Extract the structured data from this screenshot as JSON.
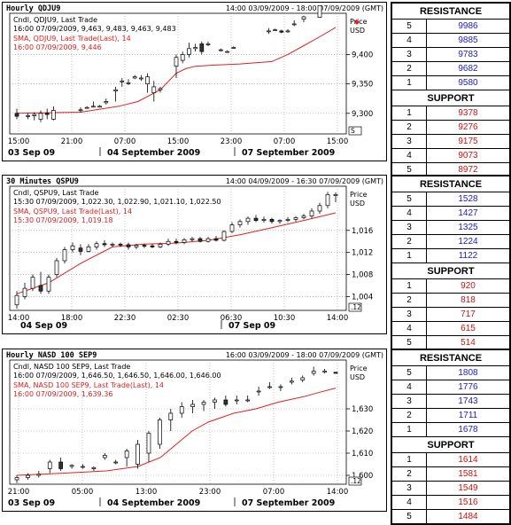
{
  "colors": {
    "support": "#d01010",
    "resistance": "#1a1ad0",
    "sma": "#e02020",
    "candle_up": "#ffffff",
    "candle_down": "#333333"
  },
  "chart_data": [
    {
      "type": "candlestick",
      "title": "Hourly QDJU9",
      "time_range": "14:00 03/09/2009 - 18:00 07/09/2009 (GMT)",
      "legend": [
        "Cndl, QDJU9, Last Trade",
        "16:00 07/09/2009, 9,463, 9,483, 9,463, 9,483",
        "SMA, QDJU9, Last Trade(Last), 14",
        "16:00 07/09/2009, 9,446"
      ],
      "price_label": [
        "Price",
        "USD"
      ],
      "ylim": [
        9265,
        9470
      ],
      "yticks": [
        "9,400",
        "9,350",
        "9,300"
      ],
      "ytick_values": [
        9400,
        9350,
        9300
      ],
      "xtick_labels": [
        "15:00",
        "21:00",
        "07:00",
        "15:00",
        "23:00",
        "07:00",
        "15:00"
      ],
      "date_labels": [
        "03 Sep 09",
        "04 September 2009",
        "07 September 2009"
      ],
      "scale_box": "S",
      "candles": [
        {
          "o": 9300,
          "h": 9308,
          "l": 9290,
          "c": 9295
        },
        {
          "o": 9295,
          "h": 9300,
          "l": 9290,
          "c": 9296
        },
        {
          "o": 9296,
          "h": 9302,
          "l": 9288,
          "c": 9298
        },
        {
          "o": 9290,
          "h": 9305,
          "l": 9285,
          "c": 9300
        },
        {
          "o": 9300,
          "h": 9308,
          "l": 9290,
          "c": 9298
        },
        {
          "o": 9290,
          "h": 9312,
          "l": 9288,
          "c": 9305
        },
        {
          "o": 9306,
          "h": 9310,
          "l": 9302,
          "c": 9306
        },
        {
          "o": 9310,
          "h": 9312,
          "l": 9308,
          "c": 9310
        },
        {
          "o": 9312,
          "h": 9320,
          "l": 9310,
          "c": 9312
        },
        {
          "o": 9312,
          "h": 9314,
          "l": 9310,
          "c": 9312
        },
        {
          "o": 9318,
          "h": 9325,
          "l": 9315,
          "c": 9320
        },
        {
          "o": 9338,
          "h": 9345,
          "l": 9320,
          "c": 9340
        },
        {
          "o": 9355,
          "h": 9360,
          "l": 9345,
          "c": 9355
        },
        {
          "o": 9352,
          "h": 9358,
          "l": 9348,
          "c": 9352
        },
        {
          "o": 9360,
          "h": 9365,
          "l": 9358,
          "c": 9362
        },
        {
          "o": 9360,
          "h": 9365,
          "l": 9355,
          "c": 9360
        },
        {
          "o": 9350,
          "h": 9368,
          "l": 9335,
          "c": 9362
        },
        {
          "o": 9335,
          "h": 9355,
          "l": 9320,
          "c": 9345
        },
        {
          "o": 9340,
          "h": 9345,
          "l": 9335,
          "c": 9342
        },
        {
          "o": 9380,
          "h": 9400,
          "l": 9360,
          "c": 9395
        },
        {
          "o": 9390,
          "h": 9405,
          "l": 9385,
          "c": 9400
        },
        {
          "o": 9400,
          "h": 9420,
          "l": 9395,
          "c": 9410
        },
        {
          "o": 9410,
          "h": 9418,
          "l": 9405,
          "c": 9412
        },
        {
          "o": 9418,
          "h": 9422,
          "l": 9400,
          "c": 9405
        },
        {
          "o": 9418,
          "h": 9422,
          "l": 9414,
          "c": 9418
        },
        {
          "o": 9408,
          "h": 9410,
          "l": 9405,
          "c": 9408
        },
        {
          "o": 9405,
          "h": 9407,
          "l": 9403,
          "c": 9405
        },
        {
          "o": 9412,
          "h": 9414,
          "l": 9410,
          "c": 9412
        },
        {
          "o": 9440,
          "h": 9445,
          "l": 9435,
          "c": 9440
        },
        {
          "o": 9442,
          "h": 9444,
          "l": 9440,
          "c": 9442
        },
        {
          "o": 9440,
          "h": 9442,
          "l": 9436,
          "c": 9438
        },
        {
          "o": 9440,
          "h": 9443,
          "l": 9437,
          "c": 9440
        },
        {
          "o": 9452,
          "h": 9458,
          "l": 9448,
          "c": 9452
        },
        {
          "o": 9460,
          "h": 9466,
          "l": 9455,
          "c": 9464
        },
        {
          "o": 9463,
          "h": 9483,
          "l": 9463,
          "c": 9483
        }
      ],
      "candle_x_fraction": [
        0.0,
        0.035,
        0.055,
        0.075,
        0.095,
        0.115,
        0.2,
        0.22,
        0.24,
        0.26,
        0.28,
        0.31,
        0.33,
        0.35,
        0.37,
        0.39,
        0.41,
        0.43,
        0.45,
        0.5,
        0.52,
        0.54,
        0.56,
        0.58,
        0.6,
        0.64,
        0.66,
        0.68,
        0.79,
        0.81,
        0.83,
        0.85,
        0.87,
        0.9,
        0.95
      ],
      "sma": [
        [
          0.0,
          9300
        ],
        [
          0.2,
          9302
        ],
        [
          0.32,
          9312
        ],
        [
          0.38,
          9320
        ],
        [
          0.45,
          9340
        ],
        [
          0.5,
          9368
        ],
        [
          0.53,
          9376
        ],
        [
          0.56,
          9380
        ],
        [
          0.62,
          9382
        ],
        [
          0.7,
          9384
        ],
        [
          0.8,
          9388
        ],
        [
          0.85,
          9400
        ],
        [
          0.9,
          9415
        ],
        [
          0.95,
          9430
        ],
        [
          1.0,
          9446
        ]
      ]
    },
    {
      "type": "candlestick",
      "title": "30 Minutes QSPU9",
      "time_range": "14:00 04/09/2009 - 16:30 07/09/2009 (GMT)",
      "legend": [
        "Cndl, QSPU9, Last Trade",
        "15:30 07/09/2009, 1,022.30, 1,022.90, 1,021.10, 1,022.50",
        "SMA, QSPU9, Last Trade(Last), 14",
        "15:30 07/09/2009, 1,019.18"
      ],
      "price_label": [
        "Price",
        "USD"
      ],
      "ylim": [
        1001.5,
        1024
      ],
      "yticks": [
        "1,016",
        "1,012",
        "1,008",
        "1,004"
      ],
      "ytick_values": [
        1016,
        1012,
        1008,
        1004
      ],
      "xtick_labels": [
        "14:00",
        "18:00",
        "22:30",
        "02:30",
        "06:30",
        "10:30",
        "14:00"
      ],
      "date_labels": [
        "04 Sep 09",
        "07 Sep 09"
      ],
      "scale_box": ".12",
      "candles": [
        {
          "o": 1002.5,
          "h": 1005,
          "l": 1001.8,
          "c": 1004.2
        },
        {
          "o": 1004,
          "h": 1006.5,
          "l": 1003.5,
          "c": 1005.5
        },
        {
          "o": 1005.5,
          "h": 1008,
          "l": 1005,
          "c": 1007.5
        },
        {
          "o": 1006,
          "h": 1008.5,
          "l": 1004.5,
          "c": 1005
        },
        {
          "o": 1005,
          "h": 1008,
          "l": 1004.5,
          "c": 1007.5
        },
        {
          "o": 1008,
          "h": 1011,
          "l": 1007.5,
          "c": 1010.5
        },
        {
          "o": 1010.5,
          "h": 1013,
          "l": 1010,
          "c": 1012.5
        },
        {
          "o": 1012.5,
          "h": 1013.8,
          "l": 1012,
          "c": 1013.2
        },
        {
          "o": 1012.8,
          "h": 1013.5,
          "l": 1011.5,
          "c": 1012.2
        },
        {
          "o": 1012.2,
          "h": 1013.5,
          "l": 1012,
          "c": 1013
        },
        {
          "o": 1013,
          "h": 1014,
          "l": 1012.5,
          "c": 1013.6
        },
        {
          "o": 1013.6,
          "h": 1014.2,
          "l": 1013,
          "c": 1013.4
        },
        {
          "o": 1013.4,
          "h": 1013.8,
          "l": 1013,
          "c": 1013.5
        },
        {
          "o": 1013.5,
          "h": 1013.8,
          "l": 1013,
          "c": 1013.4
        },
        {
          "o": 1013.4,
          "h": 1013.8,
          "l": 1012.5,
          "c": 1013
        },
        {
          "o": 1013,
          "h": 1013.6,
          "l": 1012.6,
          "c": 1013.3
        },
        {
          "o": 1013.3,
          "h": 1013.6,
          "l": 1012.8,
          "c": 1013.2
        },
        {
          "o": 1013.2,
          "h": 1013.6,
          "l": 1012.8,
          "c": 1013
        },
        {
          "o": 1013,
          "h": 1013.8,
          "l": 1012.8,
          "c": 1013.5
        },
        {
          "o": 1013.5,
          "h": 1014.5,
          "l": 1013.2,
          "c": 1014
        },
        {
          "o": 1014,
          "h": 1014.5,
          "l": 1013.5,
          "c": 1013.8
        },
        {
          "o": 1013.8,
          "h": 1014.6,
          "l": 1013.5,
          "c": 1014.3
        },
        {
          "o": 1014.3,
          "h": 1014.8,
          "l": 1014,
          "c": 1014.5
        },
        {
          "o": 1014.5,
          "h": 1014.8,
          "l": 1013.8,
          "c": 1014
        },
        {
          "o": 1014,
          "h": 1014.8,
          "l": 1013.8,
          "c": 1014.5
        },
        {
          "o": 1014.5,
          "h": 1015,
          "l": 1014,
          "c": 1014.2
        },
        {
          "o": 1014.2,
          "h": 1016,
          "l": 1014,
          "c": 1015.8
        },
        {
          "o": 1015.8,
          "h": 1017.5,
          "l": 1015.5,
          "c": 1017
        },
        {
          "o": 1017,
          "h": 1018,
          "l": 1016.5,
          "c": 1017.6
        },
        {
          "o": 1017.6,
          "h": 1018.5,
          "l": 1017,
          "c": 1018.2
        },
        {
          "o": 1018.2,
          "h": 1018.8,
          "l": 1017.5,
          "c": 1017.8
        },
        {
          "o": 1017.8,
          "h": 1018.5,
          "l": 1017.4,
          "c": 1018
        },
        {
          "o": 1018,
          "h": 1018.3,
          "l": 1017.2,
          "c": 1017.6
        },
        {
          "o": 1017.6,
          "h": 1018,
          "l": 1017.2,
          "c": 1017.8
        },
        {
          "o": 1017.8,
          "h": 1018.4,
          "l": 1017.5,
          "c": 1018
        },
        {
          "o": 1018,
          "h": 1018.6,
          "l": 1017.6,
          "c": 1018.3
        },
        {
          "o": 1018.3,
          "h": 1019,
          "l": 1018,
          "c": 1018.6
        },
        {
          "o": 1018.6,
          "h": 1020,
          "l": 1018.2,
          "c": 1019.5
        },
        {
          "o": 1019.5,
          "h": 1021,
          "l": 1019,
          "c": 1020.5
        },
        {
          "o": 1020.5,
          "h": 1023,
          "l": 1020,
          "c": 1022.5
        },
        {
          "o": 1022.3,
          "h": 1022.9,
          "l": 1021.1,
          "c": 1022.5
        }
      ],
      "sma": [
        [
          0.0,
          1004.5
        ],
        [
          0.1,
          1006.5
        ],
        [
          0.2,
          1010
        ],
        [
          0.3,
          1013
        ],
        [
          0.4,
          1013.5
        ],
        [
          0.5,
          1013.7
        ],
        [
          0.6,
          1014.2
        ],
        [
          0.7,
          1015.2
        ],
        [
          0.8,
          1016.5
        ],
        [
          0.9,
          1017.8
        ],
        [
          1.0,
          1019.18
        ]
      ]
    },
    {
      "type": "candlestick",
      "title": "Hourly NASD 100 SEP9",
      "time_range": "16:00 03/09/2009 - 18:00 07/09/2009 (GMT)",
      "legend": [
        "Cndl, NASD 100 SEP9, Last Trade",
        "16:00 07/09/2009, 1,646.50, 1,646.50, 1,646.00, 1,646.00",
        "SMA, NASD 100 SEP9, Last Trade(Last), 14",
        "16:00 07/09/2009, 1,639.36"
      ],
      "price_label": [
        "Price",
        "USD"
      ],
      "ylim": [
        1596,
        1652
      ],
      "yticks": [
        "1,630",
        "1,620",
        "1,610",
        "1,600"
      ],
      "ytick_values": [
        1630,
        1620,
        1610,
        1600
      ],
      "xtick_labels": [
        "21:00",
        "05:00",
        "13:00",
        "23:00",
        "07:00",
        "14:00"
      ],
      "date_labels": [
        "03 Sep 09",
        "04 September 2009",
        "07 September 2009"
      ],
      "scale_box": ".12",
      "candles": [
        {
          "o": 1598,
          "h": 1600,
          "l": 1596.5,
          "c": 1599
        },
        {
          "o": 1599,
          "h": 1601,
          "l": 1598,
          "c": 1600
        },
        {
          "o": 1600,
          "h": 1602,
          "l": 1599,
          "c": 1600.5
        },
        {
          "o": 1603,
          "h": 1607,
          "l": 1601,
          "c": 1606
        },
        {
          "o": 1606,
          "h": 1608,
          "l": 1602,
          "c": 1603
        },
        {
          "o": 1604,
          "h": 1605,
          "l": 1603,
          "c": 1604.5
        },
        {
          "o": 1604,
          "h": 1605,
          "l": 1603,
          "c": 1604
        },
        {
          "o": 1603,
          "h": 1604,
          "l": 1602,
          "c": 1603.5
        },
        {
          "o": 1608,
          "h": 1610,
          "l": 1607,
          "c": 1609
        },
        {
          "o": 1606,
          "h": 1607,
          "l": 1605,
          "c": 1606
        },
        {
          "o": 1608,
          "h": 1612,
          "l": 1604,
          "c": 1611
        },
        {
          "o": 1605,
          "h": 1616,
          "l": 1603,
          "c": 1614
        },
        {
          "o": 1610,
          "h": 1620,
          "l": 1606,
          "c": 1619
        },
        {
          "o": 1614,
          "h": 1626,
          "l": 1612,
          "c": 1625
        },
        {
          "o": 1625,
          "h": 1630,
          "l": 1620,
          "c": 1628
        },
        {
          "o": 1628,
          "h": 1633,
          "l": 1626,
          "c": 1631
        },
        {
          "o": 1631,
          "h": 1634,
          "l": 1628,
          "c": 1632
        },
        {
          "o": 1632,
          "h": 1634,
          "l": 1629,
          "c": 1633
        },
        {
          "o": 1633,
          "h": 1635,
          "l": 1630,
          "c": 1634
        },
        {
          "o": 1634,
          "h": 1636,
          "l": 1631,
          "c": 1632
        },
        {
          "o": 1634,
          "h": 1636,
          "l": 1632,
          "c": 1634
        },
        {
          "o": 1634,
          "h": 1636,
          "l": 1633,
          "c": 1634
        },
        {
          "o": 1638,
          "h": 1640,
          "l": 1636,
          "c": 1638
        },
        {
          "o": 1640,
          "h": 1642,
          "l": 1639,
          "c": 1640
        },
        {
          "o": 1640,
          "h": 1641,
          "l": 1638,
          "c": 1640
        },
        {
          "o": 1642,
          "h": 1644,
          "l": 1641,
          "c": 1642.5
        },
        {
          "o": 1643,
          "h": 1645,
          "l": 1642,
          "c": 1644
        },
        {
          "o": 1646,
          "h": 1649,
          "l": 1645,
          "c": 1647
        },
        {
          "o": 1646.5,
          "h": 1648,
          "l": 1646,
          "c": 1647
        },
        {
          "o": 1646.5,
          "h": 1646.5,
          "l": 1646,
          "c": 1646
        }
      ],
      "sma": [
        [
          0.0,
          1600
        ],
        [
          0.15,
          1601
        ],
        [
          0.28,
          1602
        ],
        [
          0.38,
          1604
        ],
        [
          0.45,
          1608
        ],
        [
          0.5,
          1614
        ],
        [
          0.55,
          1620
        ],
        [
          0.6,
          1624
        ],
        [
          0.68,
          1628
        ],
        [
          0.75,
          1630
        ],
        [
          0.82,
          1633
        ],
        [
          0.9,
          1635.5
        ],
        [
          0.95,
          1637.5
        ],
        [
          1.0,
          1639.36
        ]
      ]
    }
  ],
  "sr_tables": [
    {
      "resistance": [
        {
          "n": "5",
          "v": "9986"
        },
        {
          "n": "4",
          "v": "9885"
        },
        {
          "n": "3",
          "v": "9783"
        },
        {
          "n": "2",
          "v": "9682"
        },
        {
          "n": "1",
          "v": "9580"
        }
      ],
      "support": [
        {
          "n": "1",
          "v": "9378"
        },
        {
          "n": "2",
          "v": "9276"
        },
        {
          "n": "3",
          "v": "9175"
        },
        {
          "n": "4",
          "v": "9073"
        },
        {
          "n": "5",
          "v": "8972"
        }
      ]
    },
    {
      "resistance": [
        {
          "n": "5",
          "v": "1528"
        },
        {
          "n": "4",
          "v": "1427"
        },
        {
          "n": "3",
          "v": "1325"
        },
        {
          "n": "2",
          "v": "1224"
        },
        {
          "n": "1",
          "v": "1122"
        }
      ],
      "support": [
        {
          "n": "1",
          "v": "920"
        },
        {
          "n": "2",
          "v": "818"
        },
        {
          "n": "3",
          "v": "717"
        },
        {
          "n": "4",
          "v": "615"
        },
        {
          "n": "5",
          "v": "514"
        }
      ]
    },
    {
      "resistance": [
        {
          "n": "5",
          "v": "1808"
        },
        {
          "n": "4",
          "v": "1776"
        },
        {
          "n": "3",
          "v": "1743"
        },
        {
          "n": "2",
          "v": "1711"
        },
        {
          "n": "1",
          "v": "1678"
        }
      ],
      "support": [
        {
          "n": "1",
          "v": "1614"
        },
        {
          "n": "2",
          "v": "1581"
        },
        {
          "n": "3",
          "v": "1549"
        },
        {
          "n": "4",
          "v": "1516"
        },
        {
          "n": "5",
          "v": "1484"
        }
      ]
    }
  ],
  "labels": {
    "resistance": "RESISTANCE",
    "support": "SUPPORT"
  }
}
